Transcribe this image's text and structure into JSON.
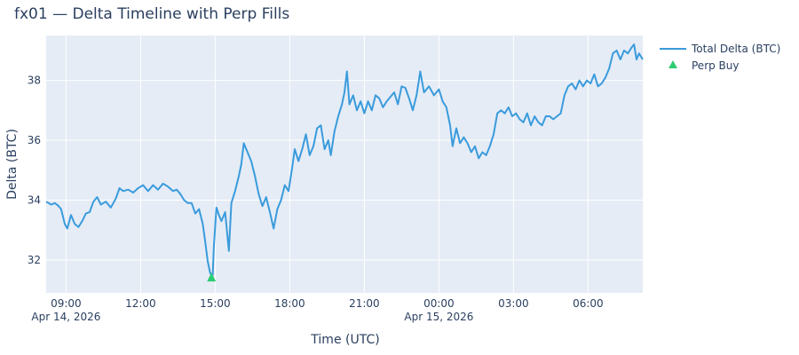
{
  "chart_data": {
    "type": "line",
    "title": "fx01 — Delta Timeline with Perp Fills",
    "xlabel": "Time (UTC)",
    "ylabel": "Delta (BTC)",
    "x_tick_labels": [
      "09:00",
      "12:00",
      "15:00",
      "18:00",
      "21:00",
      "00:00",
      "03:00",
      "06:00"
    ],
    "x_date_labels": [
      {
        "under": "09:00",
        "text": "Apr 14, 2026"
      },
      {
        "under": "00:00",
        "text": "Apr 15, 2026"
      }
    ],
    "x_range_hours": [
      -0.8,
      23.2
    ],
    "y_ticks": [
      32,
      34,
      36,
      38
    ],
    "ylim": [
      30.9,
      39.5
    ],
    "series": [
      {
        "name": "Total Delta (BTC)",
        "color": "#3a9bdc",
        "mode": "line",
        "points": [
          [
            -0.8,
            33.95
          ],
          [
            -0.6,
            33.85
          ],
          [
            -0.45,
            33.9
          ],
          [
            -0.3,
            33.8
          ],
          [
            -0.2,
            33.7
          ],
          [
            -0.05,
            33.2
          ],
          [
            0.05,
            33.05
          ],
          [
            0.2,
            33.5
          ],
          [
            0.35,
            33.2
          ],
          [
            0.5,
            33.1
          ],
          [
            0.65,
            33.3
          ],
          [
            0.8,
            33.55
          ],
          [
            0.95,
            33.6
          ],
          [
            1.1,
            33.95
          ],
          [
            1.25,
            34.1
          ],
          [
            1.4,
            33.85
          ],
          [
            1.6,
            33.95
          ],
          [
            1.8,
            33.75
          ],
          [
            2.0,
            34.05
          ],
          [
            2.15,
            34.4
          ],
          [
            2.3,
            34.3
          ],
          [
            2.5,
            34.35
          ],
          [
            2.7,
            34.25
          ],
          [
            2.9,
            34.4
          ],
          [
            3.1,
            34.5
          ],
          [
            3.3,
            34.3
          ],
          [
            3.5,
            34.5
          ],
          [
            3.7,
            34.35
          ],
          [
            3.9,
            34.55
          ],
          [
            4.1,
            34.45
          ],
          [
            4.3,
            34.3
          ],
          [
            4.45,
            34.35
          ],
          [
            4.6,
            34.2
          ],
          [
            4.75,
            34.0
          ],
          [
            4.9,
            33.9
          ],
          [
            5.05,
            33.9
          ],
          [
            5.2,
            33.55
          ],
          [
            5.35,
            33.7
          ],
          [
            5.5,
            33.2
          ],
          [
            5.6,
            32.6
          ],
          [
            5.7,
            31.95
          ],
          [
            5.8,
            31.55
          ],
          [
            5.9,
            31.5
          ],
          [
            5.95,
            32.5
          ],
          [
            6.05,
            33.75
          ],
          [
            6.15,
            33.5
          ],
          [
            6.25,
            33.3
          ],
          [
            6.4,
            33.6
          ],
          [
            6.55,
            32.3
          ],
          [
            6.65,
            33.9
          ],
          [
            6.8,
            34.3
          ],
          [
            6.95,
            34.8
          ],
          [
            7.05,
            35.2
          ],
          [
            7.15,
            35.9
          ],
          [
            7.3,
            35.6
          ],
          [
            7.45,
            35.3
          ],
          [
            7.6,
            34.8
          ],
          [
            7.75,
            34.2
          ],
          [
            7.9,
            33.8
          ],
          [
            8.05,
            34.1
          ],
          [
            8.2,
            33.6
          ],
          [
            8.35,
            33.05
          ],
          [
            8.5,
            33.7
          ],
          [
            8.65,
            34.0
          ],
          [
            8.8,
            34.5
          ],
          [
            8.95,
            34.3
          ],
          [
            9.1,
            35.1
          ],
          [
            9.2,
            35.7
          ],
          [
            9.35,
            35.3
          ],
          [
            9.5,
            35.7
          ],
          [
            9.65,
            36.2
          ],
          [
            9.8,
            35.5
          ],
          [
            9.95,
            35.8
          ],
          [
            10.1,
            36.4
          ],
          [
            10.25,
            36.5
          ],
          [
            10.4,
            35.7
          ],
          [
            10.55,
            36.0
          ],
          [
            10.65,
            35.5
          ],
          [
            10.8,
            36.3
          ],
          [
            10.95,
            36.8
          ],
          [
            11.1,
            37.2
          ],
          [
            11.2,
            37.6
          ],
          [
            11.3,
            38.3
          ],
          [
            11.4,
            37.2
          ],
          [
            11.55,
            37.5
          ],
          [
            11.7,
            37.0
          ],
          [
            11.85,
            37.3
          ],
          [
            12.0,
            36.9
          ],
          [
            12.15,
            37.3
          ],
          [
            12.3,
            37.0
          ],
          [
            12.45,
            37.5
          ],
          [
            12.6,
            37.4
          ],
          [
            12.75,
            37.1
          ],
          [
            12.9,
            37.3
          ],
          [
            13.05,
            37.45
          ],
          [
            13.2,
            37.6
          ],
          [
            13.35,
            37.2
          ],
          [
            13.5,
            37.8
          ],
          [
            13.65,
            37.75
          ],
          [
            13.8,
            37.4
          ],
          [
            13.95,
            37.0
          ],
          [
            14.1,
            37.5
          ],
          [
            14.25,
            38.3
          ],
          [
            14.4,
            37.6
          ],
          [
            14.6,
            37.8
          ],
          [
            14.8,
            37.5
          ],
          [
            15.0,
            37.7
          ],
          [
            15.15,
            37.3
          ],
          [
            15.3,
            37.1
          ],
          [
            15.45,
            36.5
          ],
          [
            15.55,
            35.8
          ],
          [
            15.7,
            36.4
          ],
          [
            15.85,
            35.9
          ],
          [
            16.0,
            36.1
          ],
          [
            16.15,
            35.9
          ],
          [
            16.3,
            35.6
          ],
          [
            16.45,
            35.8
          ],
          [
            16.6,
            35.4
          ],
          [
            16.75,
            35.6
          ],
          [
            16.9,
            35.5
          ],
          [
            17.05,
            35.8
          ],
          [
            17.2,
            36.2
          ],
          [
            17.35,
            36.9
          ],
          [
            17.5,
            37.0
          ],
          [
            17.65,
            36.9
          ],
          [
            17.8,
            37.1
          ],
          [
            17.95,
            36.8
          ],
          [
            18.1,
            36.9
          ],
          [
            18.25,
            36.7
          ],
          [
            18.4,
            36.6
          ],
          [
            18.55,
            36.9
          ],
          [
            18.7,
            36.5
          ],
          [
            18.85,
            36.8
          ],
          [
            19.0,
            36.6
          ],
          [
            19.15,
            36.5
          ],
          [
            19.3,
            36.8
          ],
          [
            19.45,
            36.8
          ],
          [
            19.6,
            36.7
          ],
          [
            19.75,
            36.8
          ],
          [
            19.9,
            36.9
          ],
          [
            20.05,
            37.5
          ],
          [
            20.2,
            37.8
          ],
          [
            20.35,
            37.9
          ],
          [
            20.5,
            37.7
          ],
          [
            20.65,
            38.0
          ],
          [
            20.8,
            37.8
          ],
          [
            20.95,
            38.0
          ],
          [
            21.1,
            37.9
          ],
          [
            21.25,
            38.2
          ],
          [
            21.4,
            37.8
          ],
          [
            21.55,
            37.9
          ],
          [
            21.7,
            38.1
          ],
          [
            21.85,
            38.4
          ],
          [
            22.0,
            38.9
          ],
          [
            22.15,
            39.0
          ],
          [
            22.3,
            38.7
          ],
          [
            22.45,
            39.0
          ],
          [
            22.6,
            38.9
          ],
          [
            22.75,
            39.1
          ],
          [
            22.85,
            39.2
          ],
          [
            22.95,
            38.7
          ],
          [
            23.05,
            38.9
          ],
          [
            23.2,
            38.7
          ]
        ]
      },
      {
        "name": "Perp Buy",
        "color": "#2ecc71",
        "mode": "markers",
        "marker": "triangle-up",
        "points": [
          [
            5.85,
            31.4
          ]
        ]
      }
    ],
    "legend_position": "top-right",
    "grid": true,
    "plot_bg": "#e5ecf6",
    "grid_color": "#ffffff"
  }
}
